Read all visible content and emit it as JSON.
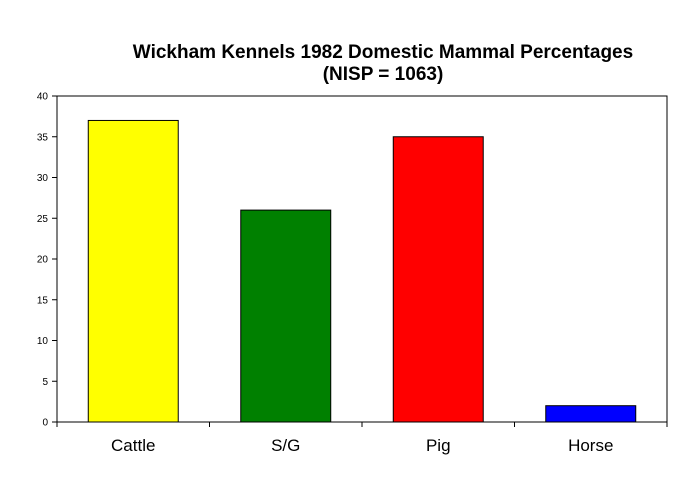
{
  "chart_data": {
    "type": "bar",
    "title": "Wickham Kennels 1982 Domestic Mammal Percentages",
    "subtitle": "(NISP = 1063)",
    "xlabel": "",
    "ylabel": "",
    "categories": [
      "Cattle",
      "S/G",
      "Pig",
      "Horse"
    ],
    "values": [
      37,
      26,
      35,
      2
    ],
    "colors": [
      "#ffff00",
      "#008000",
      "#ff0000",
      "#0000ff"
    ],
    "ylim": [
      0,
      40
    ],
    "yticks": [
      "0",
      "5",
      "10",
      "15",
      "20",
      "25",
      "30",
      "35",
      "40"
    ],
    "grid": false,
    "legend": "none"
  }
}
